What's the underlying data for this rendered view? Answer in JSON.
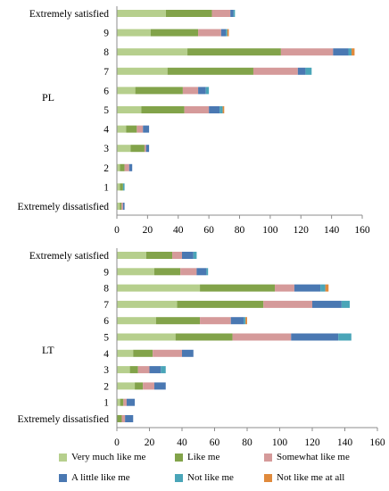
{
  "chart_data": [
    {
      "type": "bar",
      "orientation": "horizontal",
      "stacked": true,
      "group_label": "PL",
      "categories": [
        "Extremely satisfied",
        "9",
        "8",
        "7",
        "6",
        "5",
        "4",
        "3",
        "2",
        "1",
        "Extremely dissatisfied"
      ],
      "xlim": [
        0,
        160
      ],
      "xticks": [
        "0",
        "20",
        "40",
        "60",
        "80",
        "100",
        "120",
        "140",
        "160"
      ],
      "series": [
        {
          "name": "Very much like me",
          "values": [
            32,
            22,
            46,
            33,
            12,
            16,
            6,
            9,
            2,
            2,
            2
          ]
        },
        {
          "name": "Like me",
          "values": [
            30,
            31,
            61,
            56,
            31,
            28,
            7,
            9,
            3,
            2,
            1
          ]
        },
        {
          "name": "Somewhat like me",
          "values": [
            12,
            15,
            34,
            29,
            10,
            16,
            4,
            1,
            3,
            0,
            1
          ]
        },
        {
          "name": "A little like me",
          "values": [
            2,
            3,
            10,
            5,
            5,
            7,
            4,
            2,
            2,
            0,
            1
          ]
        },
        {
          "name": "Not like me",
          "values": [
            1,
            1,
            2,
            4,
            2,
            2,
            0,
            0,
            0,
            1,
            0
          ]
        },
        {
          "name": "Not like me at all",
          "values": [
            0,
            1,
            2,
            0,
            0,
            1,
            0,
            0,
            0,
            0,
            0
          ]
        }
      ]
    },
    {
      "type": "bar",
      "orientation": "horizontal",
      "stacked": true,
      "group_label": "LT",
      "categories": [
        "Extremely satisfied",
        "9",
        "8",
        "7",
        "6",
        "5",
        "4",
        "3",
        "2",
        "1",
        "Extremely dissatisfied"
      ],
      "xlim": [
        0,
        160
      ],
      "xticks": [
        "0",
        "20",
        "40",
        "60",
        "80",
        "100",
        "120",
        "140",
        "160"
      ],
      "series": [
        {
          "name": "Very much like me",
          "values": [
            18,
            23,
            51,
            37,
            24,
            36,
            10,
            8,
            11,
            2,
            0
          ]
        },
        {
          "name": "Like me",
          "values": [
            16,
            16,
            46,
            53,
            27,
            35,
            12,
            5,
            5,
            2,
            3
          ]
        },
        {
          "name": "Somewhat like me",
          "values": [
            6,
            10,
            12,
            30,
            19,
            36,
            18,
            7,
            7,
            2,
            2
          ]
        },
        {
          "name": "A little like me",
          "values": [
            7,
            6,
            16,
            18,
            8,
            29,
            7,
            7,
            7,
            5,
            5
          ]
        },
        {
          "name": "Not like me",
          "values": [
            2,
            1,
            3,
            5,
            1,
            8,
            0,
            3,
            0,
            0,
            0
          ]
        },
        {
          "name": "Not like me at all",
          "values": [
            0,
            0,
            2,
            0,
            1,
            0,
            0,
            0,
            0,
            0,
            0
          ]
        }
      ]
    }
  ],
  "legend": [
    {
      "label": "Very much like me",
      "color": "#b6cf8d"
    },
    {
      "label": "Like me",
      "color": "#82a34a"
    },
    {
      "label": "Somewhat like me",
      "color": "#d59a9a"
    },
    {
      "label": "A little like me",
      "color": "#4a78b2"
    },
    {
      "label": "Not like me",
      "color": "#4aa5b8"
    },
    {
      "label": "Not like me at all",
      "color": "#e08a3c"
    }
  ]
}
